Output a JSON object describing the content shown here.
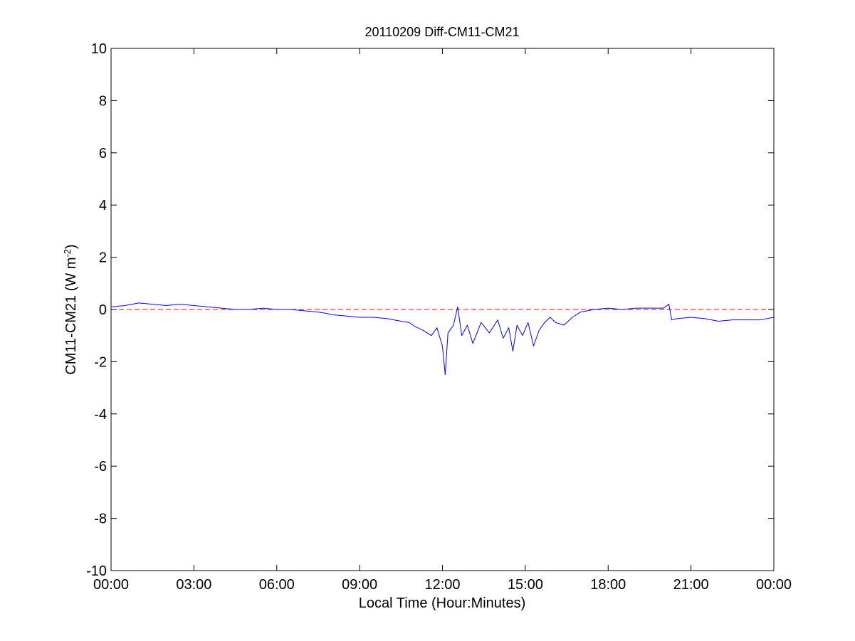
{
  "chart_data": {
    "type": "line",
    "title": "20110209 Diff-CM11-CM21",
    "xlabel": "Local Time (Hour:Minutes)",
    "ylabel": "CM11-CM21 (W m",
    "ylabel_superscript": "-2",
    "ylabel_suffix": ")",
    "xlim": [
      0,
      24
    ],
    "ylim": [
      -10,
      10
    ],
    "x_unit": "hours",
    "x_ticks": [
      0,
      3,
      6,
      9,
      12,
      15,
      18,
      21,
      24
    ],
    "x_tick_labels": [
      "00:00",
      "03:00",
      "06:00",
      "09:00",
      "12:00",
      "15:00",
      "18:00",
      "21:00",
      "00:00"
    ],
    "y_ticks": [
      -10,
      -8,
      -6,
      -4,
      -2,
      0,
      2,
      4,
      6,
      8,
      10
    ],
    "y_tick_labels": [
      "-10",
      "-8",
      "-6",
      "-4",
      "-2",
      "0",
      "2",
      "4",
      "6",
      "8",
      "10"
    ],
    "grid": false,
    "reference_line": {
      "y": 0,
      "color": "#ff0000",
      "style": "dashed"
    },
    "series": [
      {
        "color": "#0000ff",
        "x": [
          0,
          0.5,
          1,
          1.5,
          2,
          2.5,
          3,
          3.5,
          4,
          4.5,
          5,
          5.5,
          6,
          6.5,
          7,
          7.5,
          7.8,
          8,
          8.5,
          9,
          9.5,
          10,
          10.5,
          10.8,
          11,
          11.3,
          11.6,
          11.8,
          12,
          12.1,
          12.2,
          12.4,
          12.55,
          12.7,
          12.9,
          13.1,
          13.4,
          13.7,
          14,
          14.2,
          14.4,
          14.55,
          14.7,
          14.9,
          15.1,
          15.3,
          15.5,
          15.7,
          15.9,
          16.1,
          16.4,
          16.7,
          17,
          17.5,
          18,
          18.5,
          19,
          19.5,
          20,
          20.2,
          20.3,
          20.5,
          21,
          21.5,
          22,
          22.5,
          23,
          23.5,
          24
        ],
        "y": [
          0.1,
          0.15,
          0.25,
          0.2,
          0.15,
          0.2,
          0.15,
          0.1,
          0.05,
          0,
          0,
          0.05,
          0,
          0,
          -0.05,
          -0.1,
          -0.15,
          -0.2,
          -0.25,
          -0.3,
          -0.3,
          -0.35,
          -0.45,
          -0.5,
          -0.65,
          -0.8,
          -1.0,
          -0.7,
          -1.4,
          -2.5,
          -0.9,
          -0.6,
          0.1,
          -1.0,
          -0.6,
          -1.3,
          -0.5,
          -0.9,
          -0.4,
          -1.1,
          -0.7,
          -1.6,
          -0.6,
          -1.0,
          -0.5,
          -1.4,
          -0.8,
          -0.5,
          -0.3,
          -0.5,
          -0.6,
          -0.3,
          -0.1,
          0,
          0.05,
          0,
          0.05,
          0.05,
          0.05,
          0.2,
          -0.4,
          -0.35,
          -0.3,
          -0.35,
          -0.45,
          -0.4,
          -0.4,
          -0.4,
          -0.3
        ]
      }
    ]
  }
}
